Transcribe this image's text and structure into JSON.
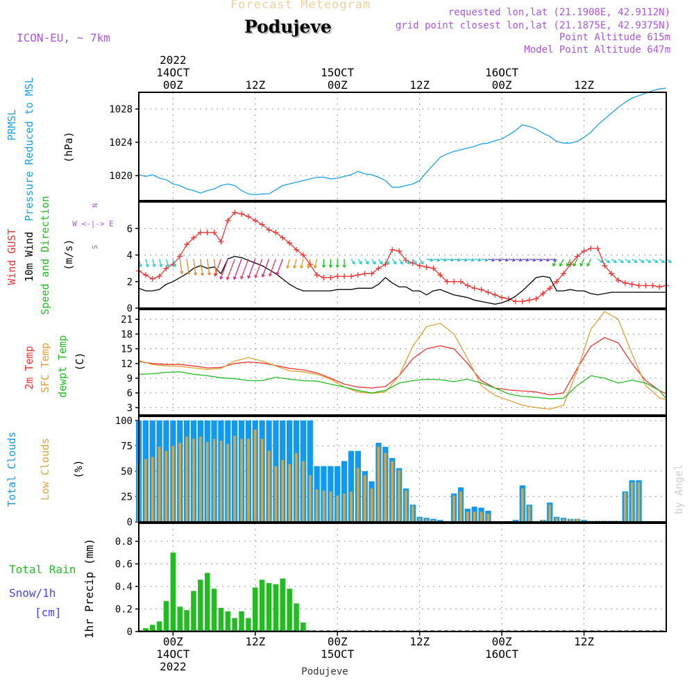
{
  "header": {
    "top_title": "Forecast Meteogram",
    "location": "Podujeve",
    "model": "ICON-EU, ~ 7km",
    "requested": "requested lon,lat (21.1908E, 42.9112N)",
    "grid_point": "grid point closest lon,lat (21.1875E, 42.9375N)",
    "point_alt": "Point Altitude 615m",
    "model_alt": "Model Point Altitude 647m",
    "watermark": "by Angel"
  },
  "time_axis": {
    "top_labels": [
      {
        "day": "14OCT",
        "year": "2022",
        "hour": "00Z"
      },
      {
        "hour": "12Z"
      },
      {
        "day": "15OCT",
        "hour": "00Z"
      },
      {
        "hour": "12Z"
      },
      {
        "day": "16OCT",
        "hour": "00Z"
      },
      {
        "hour": "12Z"
      }
    ],
    "bottom_labels": [
      {
        "hour": "00Z",
        "day": "14OCT",
        "year": "2022"
      },
      {
        "hour": "12Z"
      },
      {
        "hour": "00Z",
        "day": "15OCT"
      },
      {
        "hour": "12Z"
      },
      {
        "hour": "00Z",
        "day": "16OCT"
      },
      {
        "hour": "12Z"
      }
    ],
    "footer": "Podujeve"
  },
  "colors": {
    "pressure": "#1aa0e6",
    "gust": "#ee3333",
    "wind": "#000000",
    "green": "#22bb22",
    "sfc": "#e0a030",
    "total_clouds": "#1199ee",
    "low_clouds": "#d9a540",
    "rain": "#22bb22",
    "snow": "#4444ee",
    "purple": "#aa55dd"
  },
  "chart_data": [
    {
      "type": "line",
      "panel": "pressure",
      "ylabel_lines": [
        "PRMSL",
        "Pressure Reduced to MSL"
      ],
      "unit": "(hPa)",
      "ylim": [
        1017,
        1030
      ],
      "yticks": [
        1020,
        1024,
        1028
      ],
      "x_hours": [
        -5,
        -4,
        -3,
        -2,
        -1,
        0,
        1,
        2,
        3,
        4,
        5,
        6,
        7,
        8,
        9,
        10,
        11,
        12,
        13,
        14,
        15,
        16,
        17,
        18,
        19,
        20,
        21,
        22,
        23,
        24,
        25,
        26,
        27,
        28,
        29,
        30,
        31,
        32,
        33,
        34,
        35,
        36,
        37,
        38,
        39,
        40,
        41,
        42,
        43,
        44,
        45,
        46,
        47,
        48,
        49,
        50,
        51,
        52,
        53,
        54,
        55,
        56,
        57,
        58,
        59,
        60,
        61,
        62,
        63,
        64,
        65,
        66,
        67,
        68,
        69,
        70,
        71,
        72
      ],
      "series": [
        {
          "values": [
            1020.1,
            1019.9,
            1020.1,
            1019.7,
            1019.5,
            1019.0,
            1018.8,
            1018.4,
            1018.2,
            1017.9,
            1018.2,
            1018.4,
            1018.8,
            1019.0,
            1018.8,
            1018.2,
            1017.8,
            1017.7,
            1017.8,
            1017.8,
            1018.3,
            1018.8,
            1019.0,
            1019.2,
            1019.4,
            1019.6,
            1019.8,
            1019.8,
            1019.6,
            1019.7,
            1019.9,
            1020.1,
            1020.5,
            1020.2,
            1020.1,
            1019.8,
            1019.4,
            1018.6,
            1018.6,
            1018.8,
            1019.0,
            1019.4,
            1020.4,
            1021.3,
            1022.2,
            1022.6,
            1022.9,
            1023.1,
            1023.3,
            1023.5,
            1023.8,
            1023.9,
            1024.2,
            1024.4,
            1024.9,
            1025.4,
            1026.1,
            1025.9,
            1025.6,
            1025.1,
            1024.7,
            1024.1,
            1023.9,
            1023.9,
            1024.1,
            1024.6,
            1025.2,
            1026.1,
            1026.8,
            1027.5,
            1028.2,
            1028.8,
            1029.3,
            1029.6,
            1029.9,
            1030.2,
            1030.4,
            1030.5
          ]
        }
      ]
    },
    {
      "type": "line",
      "panel": "wind",
      "ylabel_lines": [
        "Wind GUST",
        "10m Wind",
        "Speed and Direction"
      ],
      "unit": "(m/s)",
      "compass": [
        "N",
        "W <-|-> E",
        "S"
      ],
      "ylim": [
        0,
        8
      ],
      "yticks": [
        0,
        2,
        4,
        6
      ],
      "x_hours": [
        -5,
        -4,
        -3,
        -2,
        -1,
        0,
        1,
        2,
        3,
        4,
        5,
        6,
        7,
        8,
        9,
        10,
        11,
        12,
        13,
        14,
        15,
        16,
        17,
        18,
        19,
        20,
        21,
        22,
        23,
        24,
        25,
        26,
        27,
        28,
        29,
        30,
        31,
        32,
        33,
        34,
        35,
        36,
        37,
        38,
        39,
        40,
        41,
        42,
        43,
        44,
        45,
        46,
        47,
        48,
        49,
        50,
        51,
        52,
        53,
        54,
        55,
        56,
        57,
        58,
        59,
        60,
        61,
        62,
        63,
        64,
        65,
        66,
        67,
        68,
        69,
        70,
        71,
        72
      ],
      "series": [
        {
          "name": "Wind GUST",
          "values": [
            2.8,
            2.5,
            2.2,
            2.4,
            3.0,
            3.3,
            3.9,
            4.8,
            5.3,
            5.7,
            5.7,
            5.7,
            5.0,
            6.6,
            7.2,
            7.1,
            6.9,
            6.6,
            6.3,
            5.9,
            5.7,
            5.3,
            4.9,
            4.4,
            4.0,
            3.3,
            2.5,
            2.3,
            2.3,
            2.4,
            2.4,
            2.4,
            2.5,
            2.6,
            2.6,
            3.0,
            3.3,
            4.4,
            4.3,
            3.6,
            3.4,
            3.2,
            3.1,
            3.0,
            2.5,
            2.0,
            2.0,
            2.0,
            1.7,
            1.5,
            1.4,
            1.2,
            1.0,
            0.8,
            0.7,
            0.5,
            0.5,
            0.6,
            0.7,
            1.1,
            1.5,
            2.0,
            2.6,
            3.3,
            3.9,
            4.3,
            4.5,
            4.5,
            3.2,
            2.6,
            2.1,
            1.9,
            1.8,
            1.7,
            1.7,
            1.7,
            1.6,
            1.7
          ]
        },
        {
          "name": "10m Wind",
          "values": [
            1.5,
            1.3,
            1.3,
            1.4,
            1.8,
            2.0,
            2.3,
            2.6,
            3.0,
            3.2,
            3.0,
            3.1,
            2.6,
            3.7,
            3.9,
            3.8,
            3.6,
            3.4,
            3.2,
            2.9,
            2.6,
            2.2,
            1.8,
            1.5,
            1.3,
            1.3,
            1.3,
            1.3,
            1.3,
            1.4,
            1.4,
            1.4,
            1.5,
            1.5,
            1.5,
            1.8,
            2.3,
            1.9,
            1.6,
            1.6,
            1.3,
            1.3,
            1.0,
            1.3,
            1.4,
            1.2,
            1.0,
            0.9,
            0.8,
            0.6,
            0.5,
            0.4,
            0.3,
            0.4,
            0.6,
            0.9,
            1.3,
            1.8,
            2.3,
            2.4,
            2.3,
            1.3,
            1.3,
            1.4,
            1.3,
            1.3,
            1.1,
            1.0,
            1.1,
            1.2,
            1.2,
            1.2,
            1.2,
            1.2,
            1.2,
            1.2,
            1.2,
            1.2
          ]
        }
      ]
    },
    {
      "type": "line",
      "panel": "temperature",
      "ylabel_lines": [
        "2m Temp",
        "SFC Temp",
        "dewpt Temp"
      ],
      "unit": "(C)",
      "ylim": [
        1.5,
        23
      ],
      "yticks": [
        3,
        6,
        9,
        12,
        15,
        18,
        21
      ],
      "x_hours": [
        -5,
        -3,
        -1,
        1,
        3,
        5,
        7,
        9,
        11,
        13,
        15,
        17,
        19,
        21,
        23,
        25,
        27,
        29,
        31,
        33,
        35,
        37,
        39,
        41,
        43,
        45,
        47,
        49,
        51,
        53,
        55,
        57,
        59,
        61,
        63,
        65,
        67,
        69,
        71,
        72
      ],
      "series": [
        {
          "name": "2m Temp",
          "values": [
            12.4,
            12.0,
            11.8,
            11.8,
            11.5,
            11.1,
            11.2,
            12.0,
            12.3,
            12.1,
            11.6,
            11.0,
            10.7,
            10.1,
            9.0,
            7.8,
            7.2,
            7.0,
            7.3,
            9.5,
            13.0,
            15.0,
            15.6,
            15.0,
            12.0,
            8.5,
            7.0,
            6.6,
            6.4,
            6.2,
            5.6,
            6.0,
            11.0,
            15.5,
            17.3,
            16.2,
            12.0,
            8.5,
            6.5,
            5.8
          ]
        },
        {
          "name": "SFC Temp",
          "values": [
            12.6,
            11.8,
            11.5,
            11.4,
            11.1,
            10.8,
            11.0,
            12.5,
            13.2,
            12.5,
            11.5,
            10.5,
            10.3,
            9.8,
            8.8,
            7.2,
            6.2,
            5.9,
            6.2,
            9.5,
            15.5,
            19.5,
            20.2,
            18.0,
            13.0,
            7.5,
            5.5,
            4.5,
            3.5,
            3.0,
            2.7,
            3.5,
            10.5,
            19.0,
            22.6,
            21.0,
            14.0,
            7.5,
            5.0,
            4.6
          ]
        },
        {
          "name": "dewpt Temp",
          "values": [
            9.8,
            9.9,
            10.2,
            10.3,
            9.8,
            9.5,
            9.1,
            8.9,
            8.5,
            8.5,
            9.2,
            8.8,
            8.5,
            8.4,
            7.8,
            7.2,
            6.5,
            6.0,
            6.5,
            8.0,
            8.5,
            8.8,
            8.7,
            8.3,
            8.8,
            8.0,
            7.0,
            5.8,
            5.3,
            5.1,
            4.8,
            4.9,
            7.5,
            9.5,
            9.0,
            8.0,
            8.6,
            8.0,
            6.5,
            4.8
          ]
        }
      ]
    },
    {
      "type": "bar",
      "panel": "clouds",
      "ylabel_lines": [
        "Total Clouds",
        "Low Clouds"
      ],
      "unit": "(%)",
      "ylim": [
        0,
        104
      ],
      "yticks": [
        0,
        25,
        50,
        75,
        100
      ],
      "x_hours": [
        -5,
        -4,
        -3,
        -2,
        -1,
        0,
        1,
        2,
        3,
        4,
        5,
        6,
        7,
        8,
        9,
        10,
        11,
        12,
        13,
        14,
        15,
        16,
        17,
        18,
        19,
        20,
        21,
        22,
        23,
        24,
        25,
        26,
        27,
        28,
        29,
        30,
        31,
        32,
        33,
        34,
        35,
        36,
        37,
        38,
        39,
        40,
        41,
        42,
        43,
        44,
        45,
        46,
        47,
        48,
        49,
        50,
        51,
        52,
        53,
        54,
        55,
        56,
        57,
        58,
        59,
        60,
        61,
        62,
        63,
        64,
        65,
        66,
        67,
        68,
        69,
        70,
        71,
        72
      ],
      "series": [
        {
          "name": "Total Clouds",
          "values": [
            100,
            100,
            100,
            100,
            100,
            100,
            100,
            100,
            100,
            100,
            100,
            100,
            100,
            100,
            100,
            100,
            100,
            100,
            100,
            100,
            100,
            100,
            100,
            100,
            100,
            100,
            55,
            55,
            55,
            55,
            60,
            70,
            70,
            50,
            40,
            78,
            74,
            63,
            53,
            33,
            17,
            5,
            4,
            3,
            2,
            0,
            28,
            34,
            13,
            15,
            14,
            11,
            0,
            0,
            0,
            2,
            36,
            17,
            0,
            2,
            19,
            5,
            4,
            3,
            3,
            2,
            1,
            1,
            1,
            1,
            1,
            30,
            41,
            41,
            0,
            0,
            0,
            0
          ]
        },
        {
          "name": "Low Clouds",
          "values": [
            58,
            62,
            64,
            74,
            70,
            75,
            78,
            84,
            82,
            84,
            79,
            82,
            80,
            77,
            85,
            82,
            82,
            91,
            82,
            70,
            55,
            61,
            57,
            68,
            60,
            46,
            32,
            31,
            30,
            26,
            28,
            30,
            53,
            46,
            33,
            74,
            68,
            60,
            51,
            31,
            16,
            4,
            3,
            2,
            1,
            0,
            26,
            30,
            10,
            10,
            10,
            8,
            0,
            0,
            0,
            1,
            33,
            16,
            0,
            2,
            17,
            4,
            3,
            3,
            3,
            1,
            1,
            1,
            1,
            1,
            1,
            29,
            39,
            39,
            0,
            0,
            0,
            0
          ]
        }
      ]
    },
    {
      "type": "bar",
      "panel": "precip",
      "ylabel": "1hr Precip (mm)",
      "left_labels": [
        "Total  Rain",
        "Snow/1h",
        "[cm]"
      ],
      "ylim": [
        0,
        0.96
      ],
      "yticks": [
        0,
        0.2,
        0.4,
        0.6,
        0.8
      ],
      "x_hours": [
        -4,
        -3,
        -2,
        -1,
        0,
        1,
        2,
        3,
        4,
        5,
        6,
        7,
        8,
        9,
        10,
        11,
        12,
        13,
        14,
        15,
        16,
        17,
        18,
        19,
        20
      ],
      "series": [
        {
          "name": "Total Rain",
          "values": [
            0.03,
            0.06,
            0.09,
            0.27,
            0.7,
            0.22,
            0.19,
            0.36,
            0.46,
            0.52,
            0.38,
            0.21,
            0.18,
            0.12,
            0.18,
            0.12,
            0.39,
            0.46,
            0.43,
            0.42,
            0.47,
            0.38,
            0.25,
            0.08,
            0.01
          ]
        }
      ]
    }
  ]
}
